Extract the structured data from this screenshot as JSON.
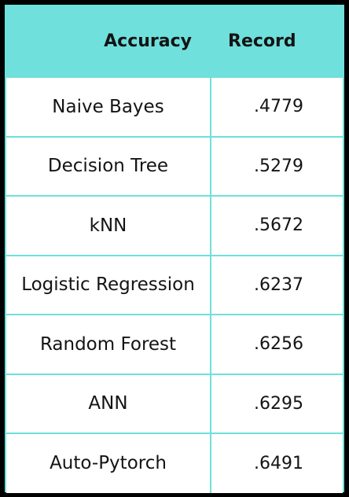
{
  "table": {
    "headers": {
      "col1": "Accuracy",
      "col2": "Record"
    },
    "rows": [
      {
        "method": "Naive Bayes",
        "value": ".4779"
      },
      {
        "method": "Decision Tree",
        "value": ".5279"
      },
      {
        "method": "kNN",
        "value": ".5672"
      },
      {
        "method": "Logistic Regression",
        "value": ".6237"
      },
      {
        "method": "Random Forest",
        "value": ".6256"
      },
      {
        "method": "ANN",
        "value": ".6295"
      },
      {
        "method": "Auto-Pytorch",
        "value": ".6491"
      }
    ]
  },
  "colors": {
    "header_background": "#6fe0dc",
    "grid_lines": "#6fe0dc",
    "row_background": "#ffffff",
    "page_background": "#000000"
  }
}
